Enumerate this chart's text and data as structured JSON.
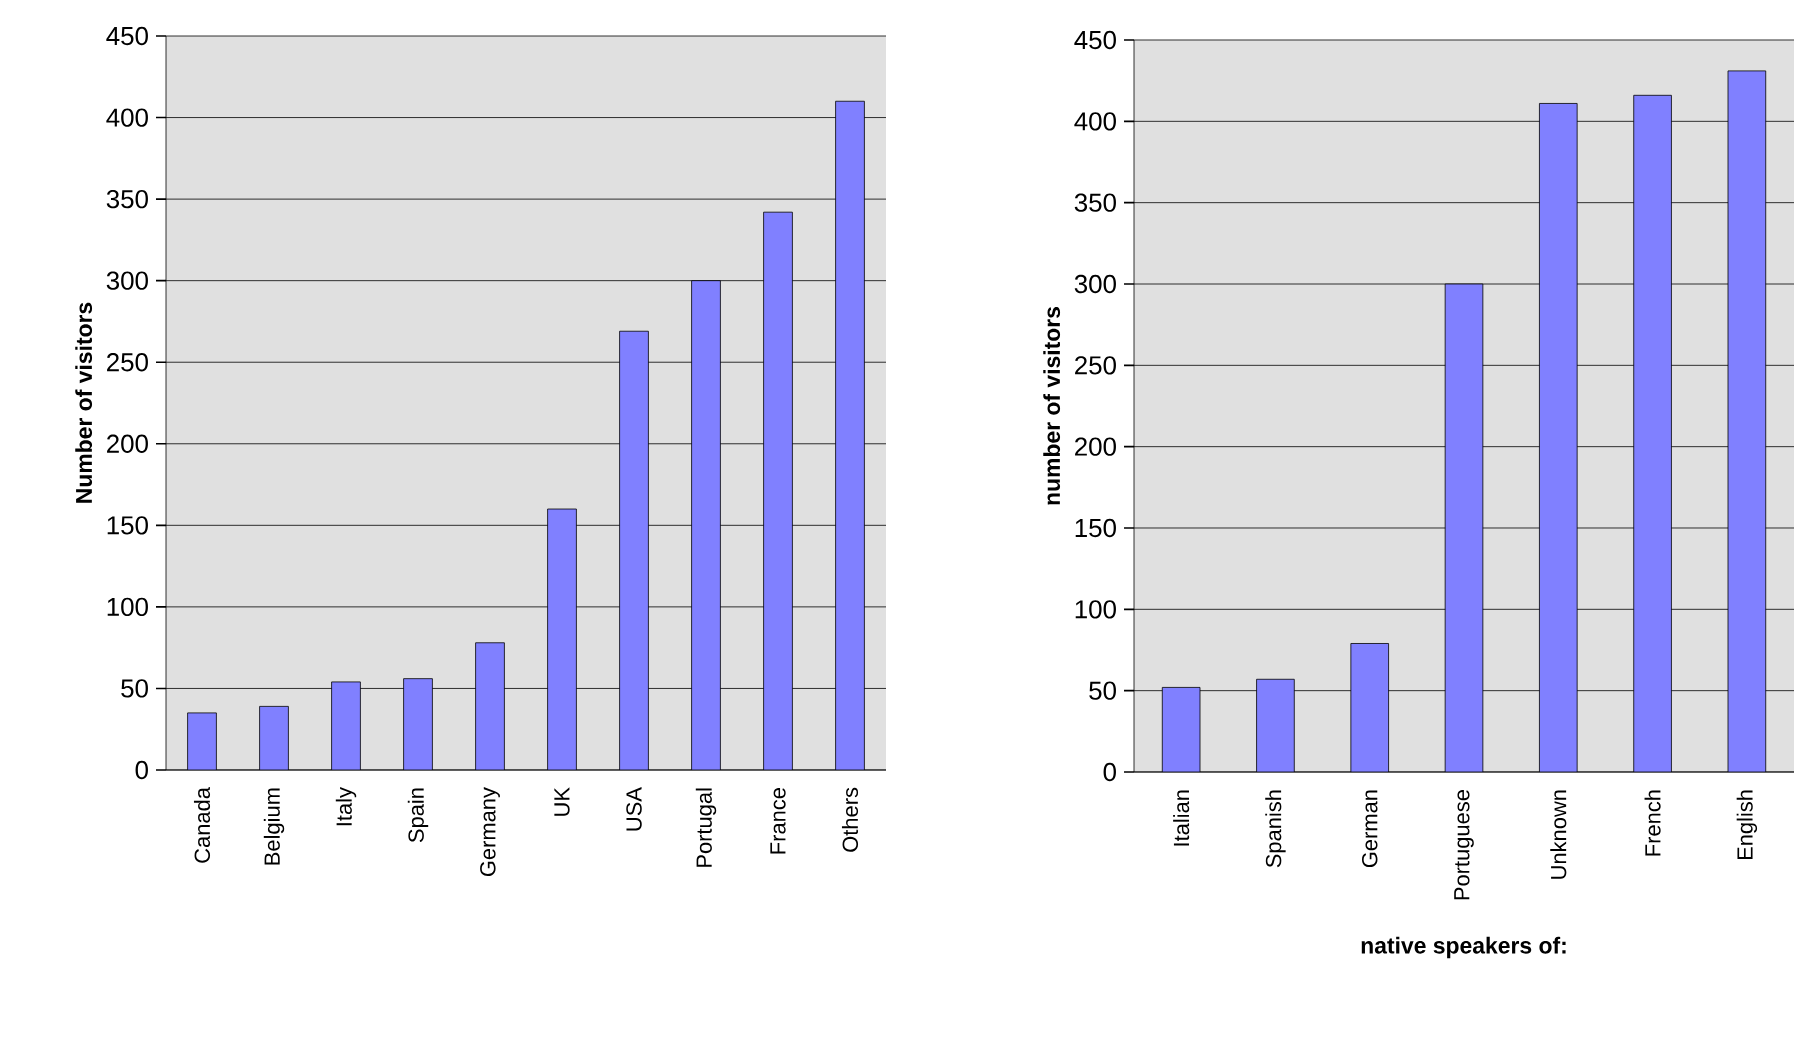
{
  "chart_data": [
    {
      "type": "bar",
      "ylabel": "Number of visitors",
      "categories": [
        "Canada",
        "Belgium",
        "Italy",
        "Spain",
        "Germany",
        "UK",
        "USA",
        "Portugal",
        "France",
        "Others"
      ],
      "values": [
        35,
        39,
        54,
        56,
        78,
        160,
        269,
        300,
        342,
        410
      ],
      "color": "#8080ff",
      "ylim": [
        0,
        450
      ],
      "yticks": [
        0,
        50,
        100,
        150,
        200,
        250,
        300,
        350,
        400,
        450
      ],
      "grid": "y"
    },
    {
      "type": "bar",
      "ylabel": "number of visitors",
      "xlabel": "native speakers of:",
      "categories": [
        "Italian",
        "Spanish",
        "German",
        "Portuguese",
        "Unknown",
        "French",
        "English"
      ],
      "values": [
        52,
        57,
        79,
        300,
        411,
        416,
        431
      ],
      "color": "#8080ff",
      "ylim": [
        0,
        450
      ],
      "yticks": [
        0,
        50,
        100,
        150,
        200,
        250,
        300,
        350,
        400,
        450
      ],
      "grid": "y"
    }
  ]
}
